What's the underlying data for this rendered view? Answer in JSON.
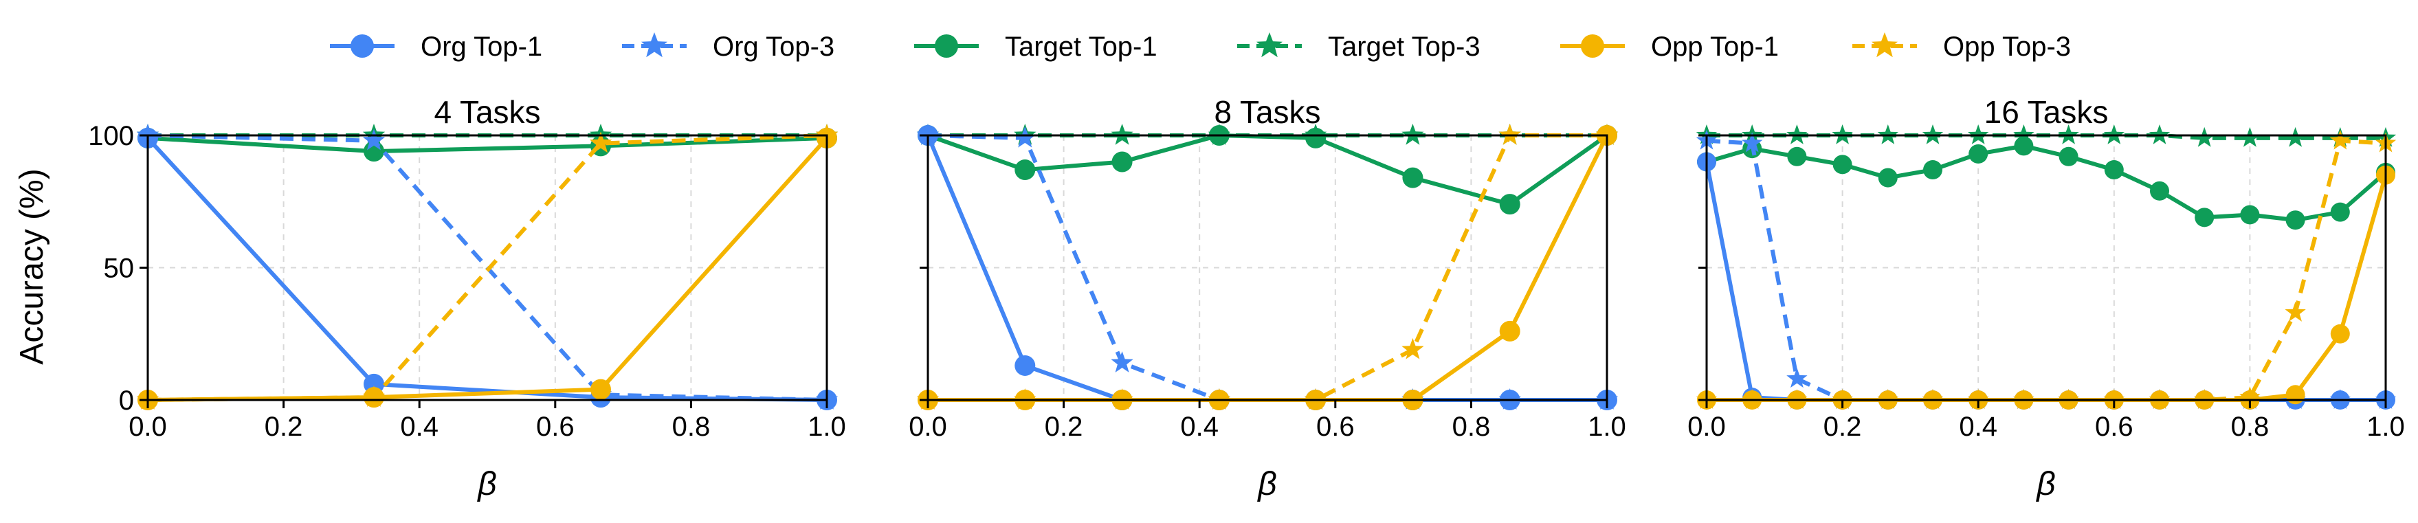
{
  "colors": {
    "Org": "#4285f4",
    "Target": "#0f9d58",
    "Opp": "#f4b400",
    "grid": "#d9d9d9",
    "dashed_ref": "#0f9d58"
  },
  "legend": [
    {
      "label": "Org Top-1",
      "group": "Org",
      "style": "solid",
      "marker": "circle"
    },
    {
      "label": "Org Top-3",
      "group": "Org",
      "style": "dashed",
      "marker": "star"
    },
    {
      "label": "Target Top-1",
      "group": "Target",
      "style": "solid",
      "marker": "circle"
    },
    {
      "label": "Target Top-3",
      "group": "Target",
      "style": "dashed",
      "marker": "star"
    },
    {
      "label": "Opp Top-1",
      "group": "Opp",
      "style": "solid",
      "marker": "circle"
    },
    {
      "label": "Opp Top-3",
      "group": "Opp",
      "style": "dashed",
      "marker": "star"
    }
  ],
  "shared_axes": {
    "ylabel": "Accuracy (%)",
    "xlabel": "β",
    "xlim": [
      0,
      1
    ],
    "ylim": [
      0,
      100
    ],
    "xticks": [
      0.0,
      0.2,
      0.4,
      0.6,
      0.8,
      1.0
    ],
    "xtick_labels": [
      "0.0",
      "0.2",
      "0.4",
      "0.6",
      "0.8",
      "1.0"
    ],
    "yticks": [
      0,
      50,
      100
    ],
    "ytick_labels": [
      "0",
      "50",
      "100"
    ],
    "grid": true
  },
  "chart_data": [
    {
      "type": "line",
      "title": "4 Tasks",
      "x": [
        0.0,
        0.333,
        0.667,
        1.0
      ],
      "series": [
        {
          "name": "Org Top-1",
          "values": [
            99,
            6,
            1,
            0
          ]
        },
        {
          "name": "Org Top-3",
          "values": [
            100,
            98,
            2,
            0
          ]
        },
        {
          "name": "Target Top-1",
          "values": [
            99,
            94,
            96,
            99
          ]
        },
        {
          "name": "Target Top-3",
          "values": [
            100,
            100,
            100,
            100
          ]
        },
        {
          "name": "Opp Top-1",
          "values": [
            0,
            1,
            4,
            99
          ]
        },
        {
          "name": "Opp Top-3",
          "values": [
            0,
            1,
            97,
            100
          ]
        }
      ]
    },
    {
      "type": "line",
      "title": "8 Tasks",
      "x": [
        0.0,
        0.143,
        0.286,
        0.429,
        0.571,
        0.714,
        0.857,
        1.0
      ],
      "series": [
        {
          "name": "Org Top-1",
          "values": [
            100,
            13,
            0,
            0,
            0,
            0,
            0,
            0
          ]
        },
        {
          "name": "Org Top-3",
          "values": [
            100,
            99,
            14,
            0,
            0,
            0,
            0,
            0
          ]
        },
        {
          "name": "Target Top-1",
          "values": [
            100,
            87,
            90,
            100,
            99,
            84,
            74,
            100
          ]
        },
        {
          "name": "Target Top-3",
          "values": [
            100,
            100,
            100,
            100,
            100,
            100,
            100,
            100
          ]
        },
        {
          "name": "Opp Top-1",
          "values": [
            0,
            0,
            0,
            0,
            0,
            0,
            26,
            100
          ]
        },
        {
          "name": "Opp Top-3",
          "values": [
            0,
            0,
            0,
            0,
            0,
            19,
            100,
            100
          ]
        }
      ]
    },
    {
      "type": "line",
      "title": "16 Tasks",
      "x": [
        0.0,
        0.067,
        0.133,
        0.2,
        0.267,
        0.333,
        0.4,
        0.467,
        0.533,
        0.6,
        0.667,
        0.733,
        0.8,
        0.867,
        0.933,
        1.0
      ],
      "series": [
        {
          "name": "Org Top-1",
          "values": [
            90,
            1,
            0,
            0,
            0,
            0,
            0,
            0,
            0,
            0,
            0,
            0,
            0,
            0,
            0,
            0
          ]
        },
        {
          "name": "Org Top-3",
          "values": [
            98,
            97,
            8,
            0,
            0,
            0,
            0,
            0,
            0,
            0,
            0,
            0,
            0,
            0,
            0,
            0
          ]
        },
        {
          "name": "Target Top-1",
          "values": [
            90,
            95,
            92,
            89,
            84,
            87,
            93,
            96,
            92,
            87,
            79,
            69,
            70,
            68,
            71,
            86
          ]
        },
        {
          "name": "Target Top-3",
          "values": [
            100,
            100,
            100,
            100,
            100,
            100,
            100,
            100,
            100,
            100,
            100,
            99,
            99,
            99,
            99,
            99
          ]
        },
        {
          "name": "Opp Top-1",
          "values": [
            0,
            0,
            0,
            0,
            0,
            0,
            0,
            0,
            0,
            0,
            0,
            0,
            0,
            2,
            25,
            85
          ]
        },
        {
          "name": "Opp Top-3",
          "values": [
            0,
            0,
            0,
            0,
            0,
            0,
            0,
            0,
            0,
            0,
            0,
            0,
            1,
            33,
            98,
            97
          ]
        }
      ]
    }
  ]
}
